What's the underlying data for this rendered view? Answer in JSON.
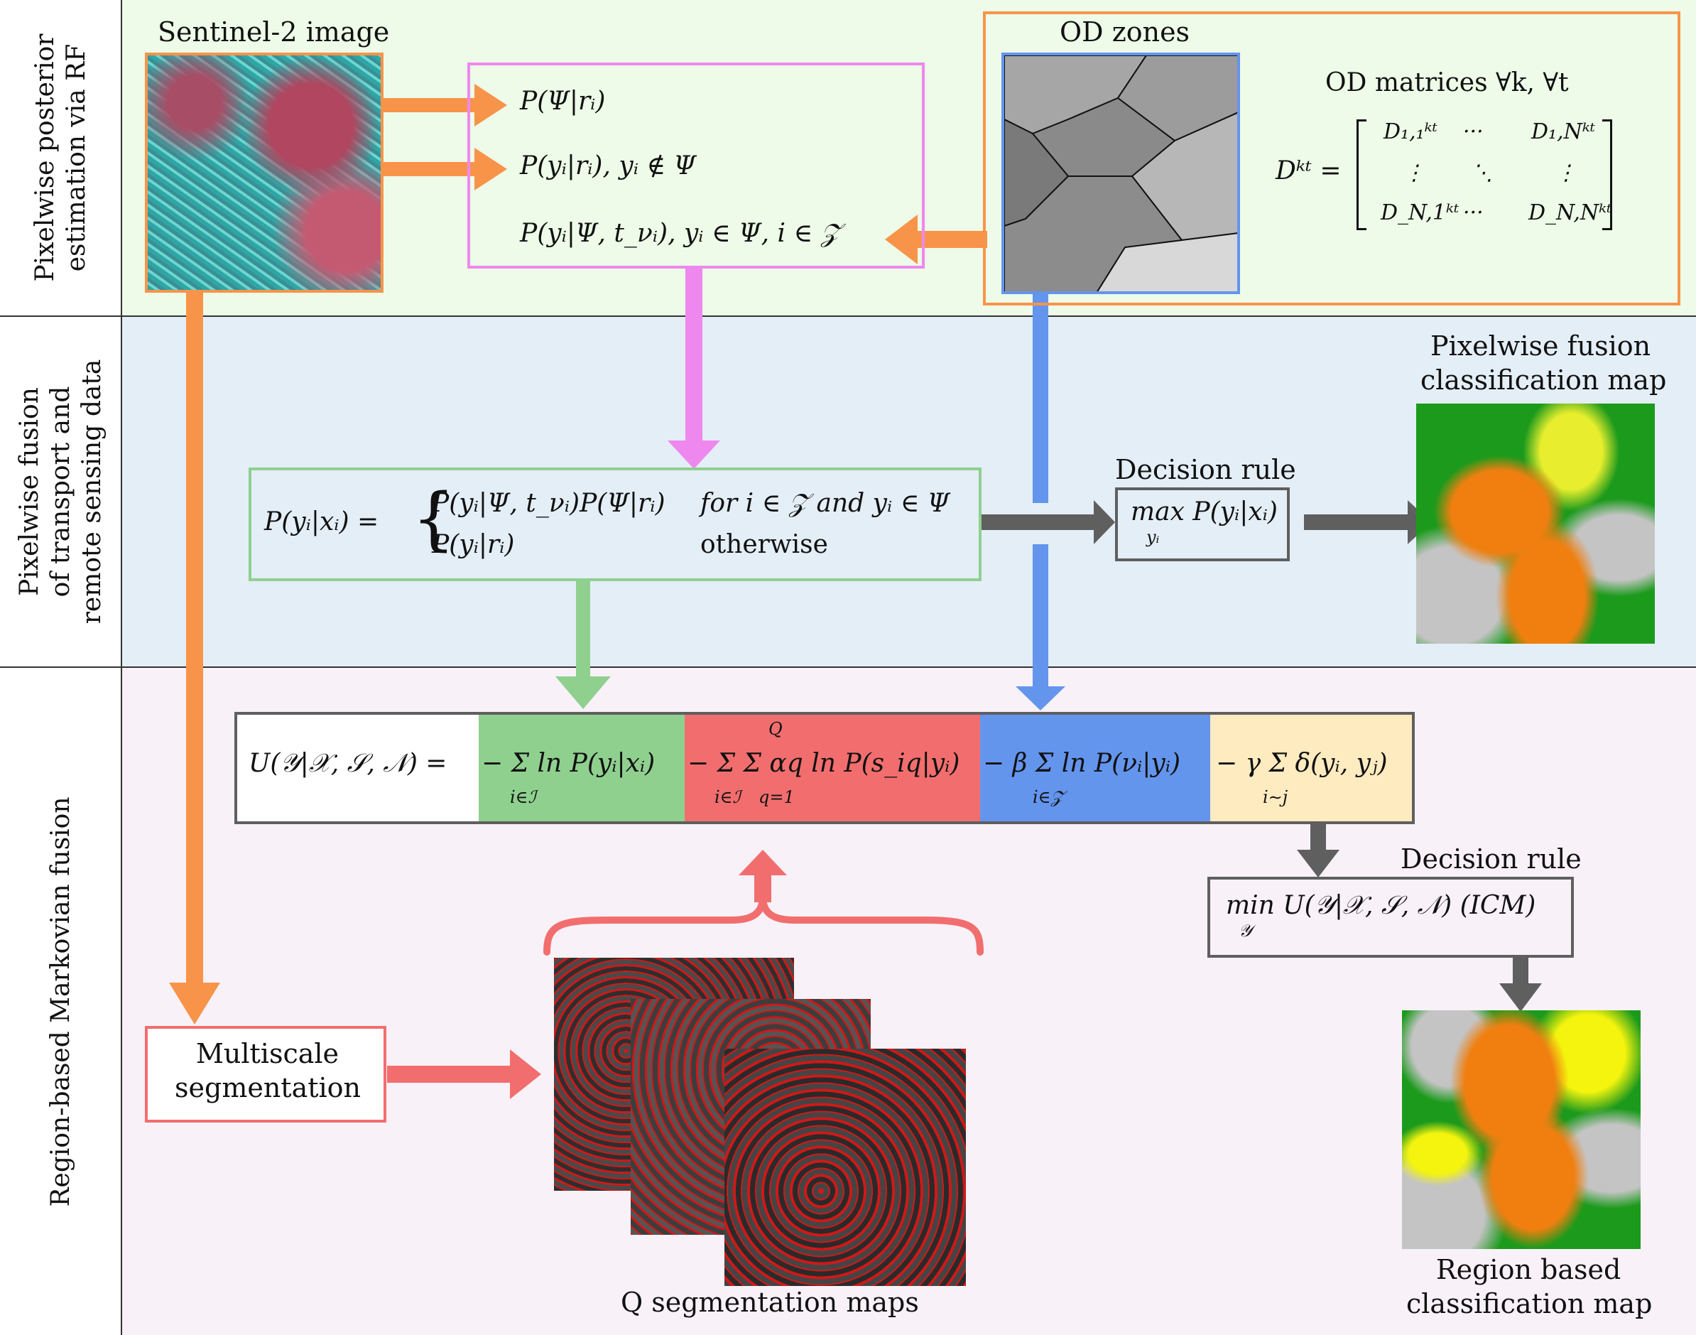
{
  "rows": {
    "row1": {
      "label_line1": "Pixelwise posterior",
      "label_line2": "estimation via RF"
    },
    "row2": {
      "label_line1": "Pixelwise fusion",
      "label_line2": "of transport and",
      "label_line3": "remote sensing data"
    },
    "row3": {
      "label_line1": "Region-based Markovian fusion"
    }
  },
  "top": {
    "sentinel_title": "Sentinel-2 image",
    "od_zones_title": "OD zones",
    "od_matrices_title": "OD matrices ∀k, ∀t",
    "prob1": "P(Ψ|rᵢ)",
    "prob2": "P(yᵢ|rᵢ),    yᵢ ∉ Ψ",
    "prob3": "P(yᵢ|Ψ, t_νᵢ),    yᵢ ∈ Ψ, i ∈ 𝒵",
    "matrix_lhs": "Dᵏᵗ =",
    "m11": "D₁,₁ᵏᵗ",
    "m12": "···",
    "m13": "D₁,Nᵏᵗ",
    "m21": "⋮",
    "m22": "⋱",
    "m23": "⋮",
    "m31": "D_N,1ᵏᵗ",
    "m32": "···",
    "m33": "D_N,Nᵏᵗ"
  },
  "middle": {
    "fusion_lhs": "P(yᵢ|xᵢ) =",
    "fusion_case1": "P(yᵢ|Ψ, t_νᵢ)P(Ψ|rᵢ)",
    "fusion_case1_cond": "for i ∈ 𝒵 and yᵢ ∈ Ψ",
    "fusion_case2": "P(yᵢ|rᵢ)",
    "fusion_case2_cond": "otherwise",
    "decision_rule_title": "Decision rule",
    "decision_rule_expr": "max P(yᵢ|xᵢ)",
    "decision_rule_sub": "yᵢ",
    "pixelwise_map_line1": "Pixelwise fusion",
    "pixelwise_map_line2": "classification map"
  },
  "bottom": {
    "energy_lhs": "U(𝒴|𝒳, 𝒮, 𝒩) =",
    "term_green": "− Σ ln P(yᵢ|xᵢ)",
    "term_green_sub": "i∈ℐ",
    "term_red": "− Σ Σ αq ln P(s_iq|yᵢ)",
    "term_red_sub1": "i∈ℐ",
    "term_red_sub2": "q=1",
    "term_red_sup": "Q",
    "term_blue": "− β Σ ln P(νᵢ|yᵢ)",
    "term_blue_sub": "i∈𝒵",
    "term_yellow": "− γ Σ δ(yᵢ, yⱼ)",
    "term_yellow_sub": "i∼j",
    "decision_rule_title": "Decision rule",
    "decision_rule_expr": "min U(𝒴|𝒳, 𝒮, 𝒩) (ICM)",
    "decision_rule_sub": "𝒴",
    "multiscale_line1": "Multiscale",
    "multiscale_line2": "segmentation",
    "segmaps_caption": "Q segmentation maps",
    "region_map_line1": "Region based",
    "region_map_line2": "classification map"
  },
  "colors": {
    "row1_bg": "#edfbe8",
    "row2_bg": "#e4eef7",
    "row3_bg": "#f8f1f8",
    "orange": "#f8944a",
    "pink": "#ee88ee",
    "blue": "#6495ed",
    "green": "#8fd08f",
    "salmon": "#f26e6e",
    "gray": "#5f5f5f",
    "cream": "#feebc0"
  }
}
